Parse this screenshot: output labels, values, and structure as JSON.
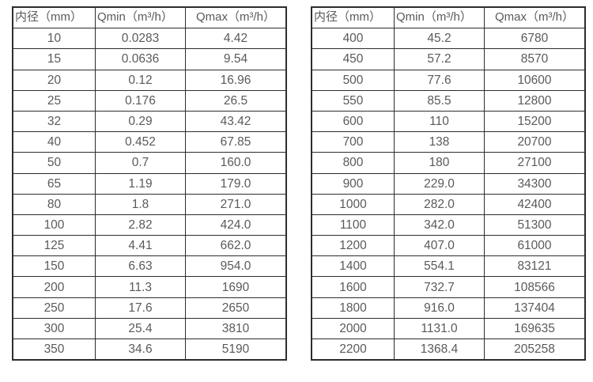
{
  "colors": {
    "background": "#ffffff",
    "table_border": "#2d2d2d",
    "text": "#5a5a5a"
  },
  "chart_data": [
    {
      "type": "table",
      "title": "",
      "columns": [
        "内径（mm）",
        "Qmin（m³/h）",
        "Qmax（m³/h）"
      ],
      "rows": [
        [
          "10",
          "0.0283",
          "4.42"
        ],
        [
          "15",
          "0.0636",
          "9.54"
        ],
        [
          "20",
          "0.12",
          "16.96"
        ],
        [
          "25",
          "0.176",
          "26.5"
        ],
        [
          "32",
          "0.29",
          "43.42"
        ],
        [
          "40",
          "0.452",
          "67.85"
        ],
        [
          "50",
          "0.7",
          "160.0"
        ],
        [
          "65",
          "1.19",
          "179.0"
        ],
        [
          "80",
          "1.8",
          "271.0"
        ],
        [
          "100",
          "2.82",
          "424.0"
        ],
        [
          "125",
          "4.41",
          "662.0"
        ],
        [
          "150",
          "6.63",
          "954.0"
        ],
        [
          "200",
          "11.3",
          "1690"
        ],
        [
          "250",
          "17.6",
          "2650"
        ],
        [
          "300",
          "25.4",
          "3810"
        ],
        [
          "350",
          "34.6",
          "5190"
        ]
      ]
    },
    {
      "type": "table",
      "title": "",
      "columns": [
        "内径（mm）",
        "Qmin（m³/h）",
        "Qmax（m³/h）"
      ],
      "rows": [
        [
          "400",
          "45.2",
          "6780"
        ],
        [
          "450",
          "57.2",
          "8570"
        ],
        [
          "500",
          "77.6",
          "10600"
        ],
        [
          "550",
          "85.5",
          "12800"
        ],
        [
          "600",
          "110",
          "15200"
        ],
        [
          "700",
          "138",
          "20700"
        ],
        [
          "800",
          "180",
          "27100"
        ],
        [
          "900",
          "229.0",
          "34300"
        ],
        [
          "1000",
          "282.0",
          "42400"
        ],
        [
          "1100",
          "342.0",
          "51300"
        ],
        [
          "1200",
          "407.0",
          "61000"
        ],
        [
          "1400",
          "554.1",
          "83121"
        ],
        [
          "1600",
          "732.7",
          "108566"
        ],
        [
          "1800",
          "916.0",
          "137404"
        ],
        [
          "2000",
          "1131.0",
          "169635"
        ],
        [
          "2200",
          "1368.4",
          "205258"
        ]
      ]
    }
  ]
}
